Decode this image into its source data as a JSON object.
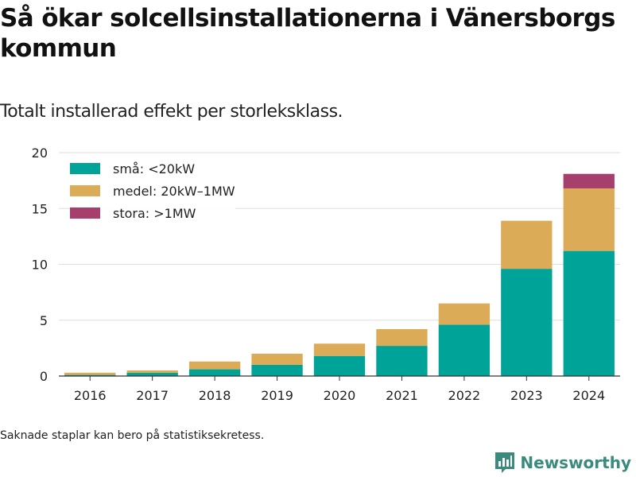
{
  "title": "Så ökar solcellsinstallationerna i Vänersborgs kommun",
  "subtitle": "Totalt installerad effekt per storleksklass.",
  "footnote": "Saknade staplar kan bero på statistiksekretess.",
  "brand": {
    "name": "Newsworthy",
    "icon": "newsworthy-logo-icon",
    "color": "#3b8a7e"
  },
  "chart_data": {
    "type": "bar",
    "stacked": true,
    "categories": [
      "2016",
      "2017",
      "2018",
      "2019",
      "2020",
      "2021",
      "2022",
      "2023",
      "2024"
    ],
    "series": [
      {
        "name": "små: <20kW",
        "color": "#00a398",
        "values": [
          0.1,
          0.3,
          0.6,
          1.0,
          1.8,
          2.7,
          4.6,
          9.6,
          11.2
        ]
      },
      {
        "name": "medel: 20kW–1MW",
        "color": "#dcab57",
        "values": [
          0.2,
          0.2,
          0.7,
          1.0,
          1.1,
          1.5,
          1.9,
          4.3,
          5.6
        ]
      },
      {
        "name": "stora: >1MW",
        "color": "#a63f6b",
        "values": [
          0,
          0,
          0,
          0,
          0,
          0,
          0,
          0,
          1.3
        ]
      }
    ],
    "yticks": [
      "0",
      "5",
      "10",
      "15",
      "20"
    ],
    "ylim": [
      0,
      20
    ],
    "grid": true,
    "legend_position": "top-left"
  }
}
